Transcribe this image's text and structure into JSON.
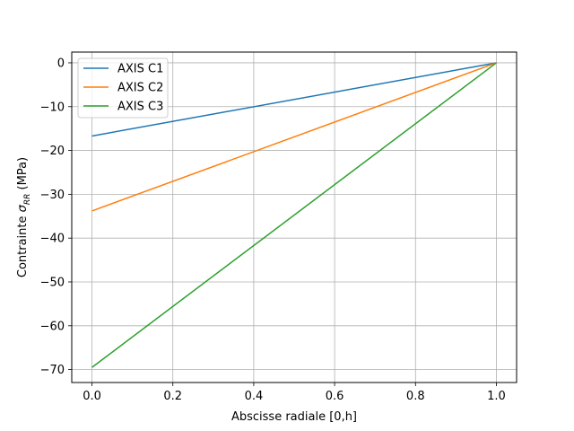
{
  "chart_data": {
    "type": "line",
    "title": "",
    "xlabel": "Abscisse radiale [0,h]",
    "ylabel_prefix": "Contrainte ",
    "ylabel_symbol": "σ",
    "ylabel_subscript": "RR",
    "ylabel_suffix": " (MPa)",
    "xlim": [
      -0.05,
      1.05
    ],
    "ylim": [
      -72.95,
      2.45
    ],
    "xticks": [
      0.0,
      0.2,
      0.4,
      0.6,
      0.8,
      1.0
    ],
    "xtick_labels": [
      "0.0",
      "0.2",
      "0.4",
      "0.6",
      "0.8",
      "1.0"
    ],
    "yticks": [
      0,
      -10,
      -20,
      -30,
      -40,
      -50,
      -60,
      -70
    ],
    "ytick_labels": [
      "0",
      "−10",
      "−20",
      "−30",
      "−40",
      "−50",
      "−60",
      "−70"
    ],
    "grid": true,
    "legend_position": "top-left",
    "colors": {
      "grid": "#b0b0b0",
      "axes": "#000000"
    },
    "series": [
      {
        "name": "AXIS C1",
        "color": "#1f77b4",
        "x": [
          0.0,
          1.0
        ],
        "y": [
          -16.7,
          0.0
        ]
      },
      {
        "name": "AXIS C2",
        "color": "#ff7f0e",
        "x": [
          0.0,
          1.0
        ],
        "y": [
          -33.8,
          0.0
        ]
      },
      {
        "name": "AXIS C3",
        "color": "#2ca02c",
        "x": [
          0.0,
          1.0
        ],
        "y": [
          -69.5,
          0.0
        ]
      }
    ]
  }
}
